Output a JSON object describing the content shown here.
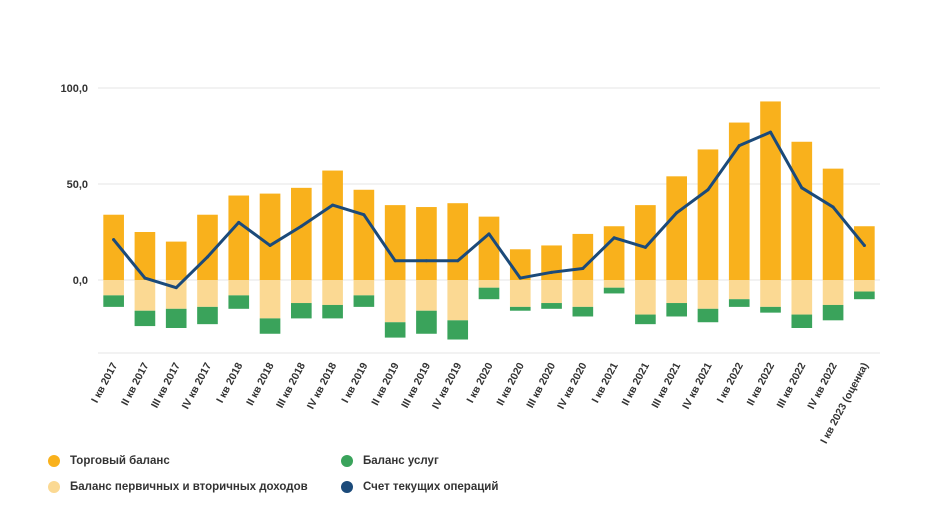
{
  "chart_data": {
    "type": "bar",
    "title": "",
    "xlabel": "",
    "ylabel": "",
    "ylim": [
      -38,
      100
    ],
    "yticks": [
      {
        "value": 100,
        "label": "100,0"
      },
      {
        "value": 50,
        "label": "50,0"
      },
      {
        "value": 0,
        "label": "0,0"
      }
    ],
    "grid": true,
    "categories": [
      "I кв 2017",
      "II кв 2017",
      "III кв 2017",
      "IV кв 2017",
      "I кв 2018",
      "II кв 2018",
      "III кв 2018",
      "IV кв 2018",
      "I кв 2019",
      "II кв 2019",
      "III кв 2019",
      "IV кв 2019",
      "I кв 2020",
      "II кв 2020",
      "III кв 2020",
      "IV кв 2020",
      "I кв 2021",
      "II кв 2021",
      "III кв 2021",
      "IV кв 2021",
      "I кв 2022",
      "II кв 2022",
      "III кв 2022",
      "IV кв 2022",
      "I кв 2023 (оценка)"
    ],
    "series": [
      {
        "name": "Торговый баланс",
        "kind": "bar",
        "color": "#F9B11C",
        "values": [
          34,
          25,
          20,
          34,
          44,
          45,
          48,
          57,
          47,
          39,
          38,
          40,
          33,
          16,
          18,
          24,
          28,
          39,
          54,
          68,
          82,
          93,
          72,
          58,
          28
        ]
      },
      {
        "name": "Баланс первичных и вторичных доходов",
        "kind": "bar",
        "color": "#FBD993",
        "values": [
          -8,
          -16,
          -15,
          -14,
          -8,
          -20,
          -12,
          -13,
          -8,
          -22,
          -16,
          -21,
          -4,
          -14,
          -12,
          -14,
          -4,
          -18,
          -12,
          -15,
          -10,
          -14,
          -18,
          -13,
          -6
        ]
      },
      {
        "name": "Баланс услуг",
        "kind": "bar",
        "color": "#3AA35B",
        "values": [
          -6,
          -8,
          -10,
          -9,
          -7,
          -8,
          -8,
          -7,
          -6,
          -8,
          -12,
          -10,
          -6,
          -2,
          -3,
          -5,
          -3,
          -5,
          -7,
          -7,
          -4,
          -3,
          -7,
          -8,
          -4
        ]
      },
      {
        "name": "Счет текущих операций",
        "kind": "line",
        "color": "#1B4A7A",
        "values": [
          21,
          1,
          -4,
          12,
          30,
          18,
          28,
          39,
          34,
          10,
          10,
          10,
          24,
          1,
          4,
          6,
          22,
          17,
          35,
          47,
          70,
          77,
          48,
          38,
          18
        ]
      }
    ],
    "legend": {
      "placement": "bottom-left",
      "items": [
        {
          "label": "Торговый баланс",
          "color": "#F9B11C"
        },
        {
          "label": "Баланс услуг",
          "color": "#3AA35B"
        },
        {
          "label": "Баланс первичных и вторичных доходов",
          "color": "#FBD993"
        },
        {
          "label": "Счет текущих операций",
          "color": "#1B4A7A"
        }
      ]
    }
  }
}
